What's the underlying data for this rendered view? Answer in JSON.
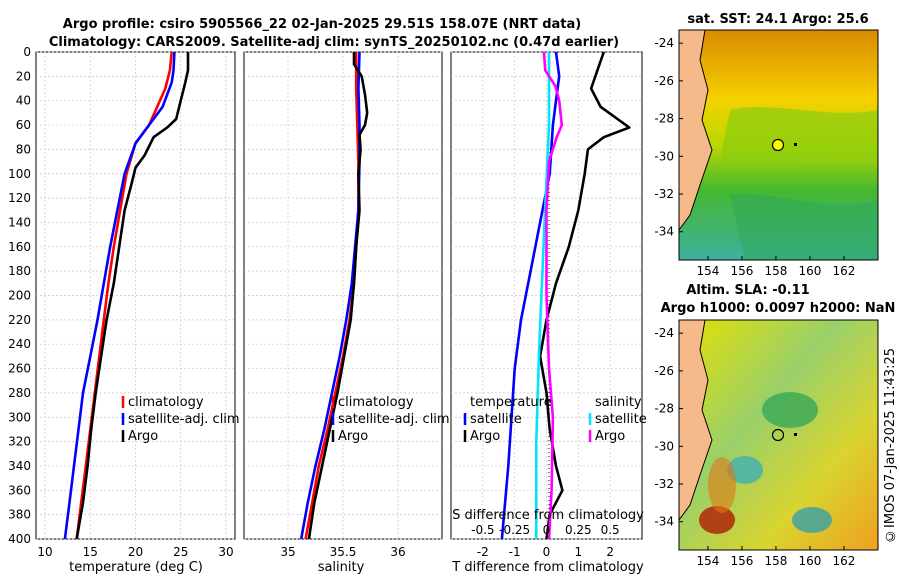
{
  "title": {
    "line1": "Argo profile: csiro 5905566_22 02-Jan-2025 29.51S 158.07E (NRT data)",
    "line2": "Climatology: CARS2009. Satellite-adj clim: synTS_20250102.nc (0.47d earlier)"
  },
  "colors": {
    "climatology": "#ff0000",
    "satellite": "#0000ff",
    "argo": "#000000",
    "sat_sal": "#00e5ff",
    "argo_sal": "#ff00ff",
    "land": "#f5b98a"
  },
  "chart_data": [
    {
      "type": "line",
      "name": "temperature-panel",
      "xlabel": "temperature (deg C)",
      "xlim": [
        9,
        31
      ],
      "ylim": [
        0,
        400
      ],
      "xticks": [
        10,
        15,
        20,
        25,
        30
      ],
      "yticks": [
        0,
        20,
        40,
        60,
        80,
        100,
        120,
        140,
        160,
        180,
        200,
        220,
        240,
        260,
        280,
        300,
        320,
        340,
        360,
        380,
        400
      ],
      "legend": [
        "climatology",
        "satellite-adj. clim",
        "Argo"
      ],
      "series": [
        {
          "name": "climatology",
          "color": "red",
          "points": [
            [
              24.0,
              0
            ],
            [
              23.8,
              15
            ],
            [
              23.3,
              30
            ],
            [
              22.4,
              45
            ],
            [
              21.5,
              60
            ],
            [
              20.0,
              75
            ],
            [
              19.0,
              100
            ],
            [
              18.3,
              130
            ],
            [
              17.6,
              160
            ],
            [
              17.0,
              190
            ],
            [
              16.5,
              220
            ],
            [
              16.0,
              250
            ],
            [
              15.5,
              280
            ],
            [
              15.0,
              310
            ],
            [
              14.5,
              340
            ],
            [
              14.0,
              370
            ],
            [
              13.5,
              400
            ]
          ]
        },
        {
          "name": "satellite-adj. clim",
          "color": "blue",
          "points": [
            [
              24.3,
              0
            ],
            [
              24.2,
              15
            ],
            [
              24.0,
              25
            ],
            [
              23.0,
              45
            ],
            [
              21.5,
              60
            ],
            [
              20.0,
              75
            ],
            [
              18.8,
              100
            ],
            [
              18.0,
              130
            ],
            [
              17.2,
              160
            ],
            [
              16.5,
              190
            ],
            [
              15.8,
              220
            ],
            [
              15.0,
              250
            ],
            [
              14.2,
              280
            ],
            [
              13.7,
              310
            ],
            [
              13.2,
              340
            ],
            [
              12.7,
              370
            ],
            [
              12.2,
              400
            ]
          ]
        },
        {
          "name": "Argo",
          "color": "black",
          "points": [
            [
              25.8,
              0
            ],
            [
              25.8,
              15
            ],
            [
              25.5,
              25
            ],
            [
              25.0,
              40
            ],
            [
              24.5,
              55
            ],
            [
              23.5,
              62
            ],
            [
              22.0,
              70
            ],
            [
              21.0,
              85
            ],
            [
              20.0,
              95
            ],
            [
              19.5,
              110
            ],
            [
              18.8,
              130
            ],
            [
              18.2,
              160
            ],
            [
              17.6,
              190
            ],
            [
              16.8,
              220
            ],
            [
              16.2,
              250
            ],
            [
              15.6,
              280
            ],
            [
              15.1,
              310
            ],
            [
              14.7,
              340
            ],
            [
              14.2,
              370
            ],
            [
              13.5,
              400
            ]
          ]
        }
      ]
    },
    {
      "type": "line",
      "name": "salinity-panel",
      "xlabel": "salinity",
      "xlim": [
        34.6,
        36.4
      ],
      "ylim": [
        0,
        400
      ],
      "xticks": [
        35,
        35.5,
        36
      ],
      "legend": [
        "climatology",
        "satellite-adj. clim",
        "Argo"
      ],
      "series": [
        {
          "name": "climatology",
          "color": "red",
          "points": [
            [
              35.62,
              0
            ],
            [
              35.62,
              30
            ],
            [
              35.63,
              60
            ],
            [
              35.64,
              90
            ],
            [
              35.64,
              130
            ],
            [
              35.62,
              160
            ],
            [
              35.6,
              190
            ],
            [
              35.56,
              220
            ],
            [
              35.5,
              250
            ],
            [
              35.43,
              280
            ],
            [
              35.36,
              310
            ],
            [
              35.28,
              340
            ],
            [
              35.22,
              370
            ],
            [
              35.16,
              400
            ]
          ]
        },
        {
          "name": "satellite-adj. clim",
          "color": "blue",
          "points": [
            [
              35.65,
              0
            ],
            [
              35.64,
              30
            ],
            [
              35.65,
              60
            ],
            [
              35.65,
              90
            ],
            [
              35.64,
              130
            ],
            [
              35.61,
              160
            ],
            [
              35.58,
              190
            ],
            [
              35.53,
              220
            ],
            [
              35.47,
              250
            ],
            [
              35.4,
              280
            ],
            [
              35.33,
              310
            ],
            [
              35.25,
              340
            ],
            [
              35.18,
              370
            ],
            [
              35.12,
              400
            ]
          ]
        },
        {
          "name": "Argo",
          "color": "black",
          "points": [
            [
              35.6,
              0
            ],
            [
              35.6,
              10
            ],
            [
              35.67,
              20
            ],
            [
              35.7,
              35
            ],
            [
              35.72,
              50
            ],
            [
              35.7,
              60
            ],
            [
              35.65,
              68
            ],
            [
              35.66,
              80
            ],
            [
              35.64,
              100
            ],
            [
              35.65,
              130
            ],
            [
              35.62,
              160
            ],
            [
              35.6,
              190
            ],
            [
              35.57,
              220
            ],
            [
              35.51,
              250
            ],
            [
              35.45,
              280
            ],
            [
              35.38,
              310
            ],
            [
              35.31,
              340
            ],
            [
              35.24,
              370
            ],
            [
              35.19,
              400
            ]
          ]
        }
      ]
    },
    {
      "type": "line",
      "name": "difference-panel",
      "xlabel": "T difference from climatology",
      "xlabel_top": "S difference from climatology",
      "xlim": [
        -3,
        3
      ],
      "ylim": [
        0,
        400
      ],
      "xticks": [
        -2,
        -1,
        0,
        1,
        2
      ],
      "top_xticks": [
        -0.5,
        -0.25,
        0,
        0.25,
        0.5
      ],
      "legend": {
        "temperature_header": "temperature",
        "salinity_header": "salinity",
        "entries": [
          "satellite",
          "Argo",
          "satellite",
          "Argo"
        ]
      },
      "series": [
        {
          "name": "temperature satellite",
          "color": "blue",
          "points": [
            [
              0.3,
              0
            ],
            [
              0.4,
              20
            ],
            [
              0.3,
              40
            ],
            [
              0.2,
              60
            ],
            [
              0.1,
              100
            ],
            [
              -0.2,
              140
            ],
            [
              -0.5,
              180
            ],
            [
              -0.8,
              220
            ],
            [
              -1.0,
              260
            ],
            [
              -1.1,
              300
            ],
            [
              -1.2,
              340
            ],
            [
              -1.3,
              370
            ],
            [
              -1.4,
              400
            ]
          ]
        },
        {
          "name": "temperature Argo",
          "color": "black",
          "points": [
            [
              1.8,
              0
            ],
            [
              1.6,
              15
            ],
            [
              1.4,
              30
            ],
            [
              1.7,
              45
            ],
            [
              2.6,
              62
            ],
            [
              1.8,
              70
            ],
            [
              1.3,
              80
            ],
            [
              1.2,
              100
            ],
            [
              1.0,
              130
            ],
            [
              0.7,
              160
            ],
            [
              0.3,
              190
            ],
            [
              0.0,
              220
            ],
            [
              -0.2,
              250
            ],
            [
              0.0,
              280
            ],
            [
              0.1,
              310
            ],
            [
              0.3,
              340
            ],
            [
              0.5,
              360
            ],
            [
              0.1,
              380
            ],
            [
              0.0,
              400
            ]
          ]
        },
        {
          "name": "salinity satellite",
          "color": "cyan",
          "points": [
            [
              0.02,
              0
            ],
            [
              0.02,
              60
            ],
            [
              -0.02,
              150
            ],
            [
              -0.06,
              250
            ],
            [
              -0.08,
              320
            ],
            [
              -0.08,
              400
            ]
          ]
        },
        {
          "name": "salinity Argo",
          "color": "magenta",
          "points": [
            [
              -0.02,
              0
            ],
            [
              -0.01,
              15
            ],
            [
              0.07,
              28
            ],
            [
              0.1,
              40
            ],
            [
              0.12,
              60
            ],
            [
              0.08,
              70
            ],
            [
              0.02,
              90
            ],
            [
              0.0,
              130
            ],
            [
              0.0,
              200
            ],
            [
              0.02,
              260
            ],
            [
              0.05,
              300
            ],
            [
              0.04,
              360
            ],
            [
              0.02,
              400
            ]
          ]
        }
      ]
    },
    {
      "type": "heatmap",
      "name": "sst-map",
      "title": "sat. SST: 24.1 Argo: 25.6",
      "xticks": [
        154,
        156,
        158,
        160,
        162
      ],
      "yticks": [
        -24,
        -26,
        -28,
        -30,
        -32,
        -34
      ],
      "argo_position": [
        158.07,
        -29.51
      ]
    },
    {
      "type": "heatmap",
      "name": "sla-map",
      "title_line1": "Altim. SLA: -0.11",
      "title_line2": "Argo h1000: 0.0097 h2000: NaN",
      "xticks": [
        154,
        156,
        158,
        160,
        162
      ],
      "yticks": [
        -24,
        -26,
        -28,
        -30,
        -32,
        -34
      ],
      "argo_position": [
        158.07,
        -29.51
      ]
    }
  ],
  "stamp": "©IMOS 07-Jan-2025 11:43:25"
}
